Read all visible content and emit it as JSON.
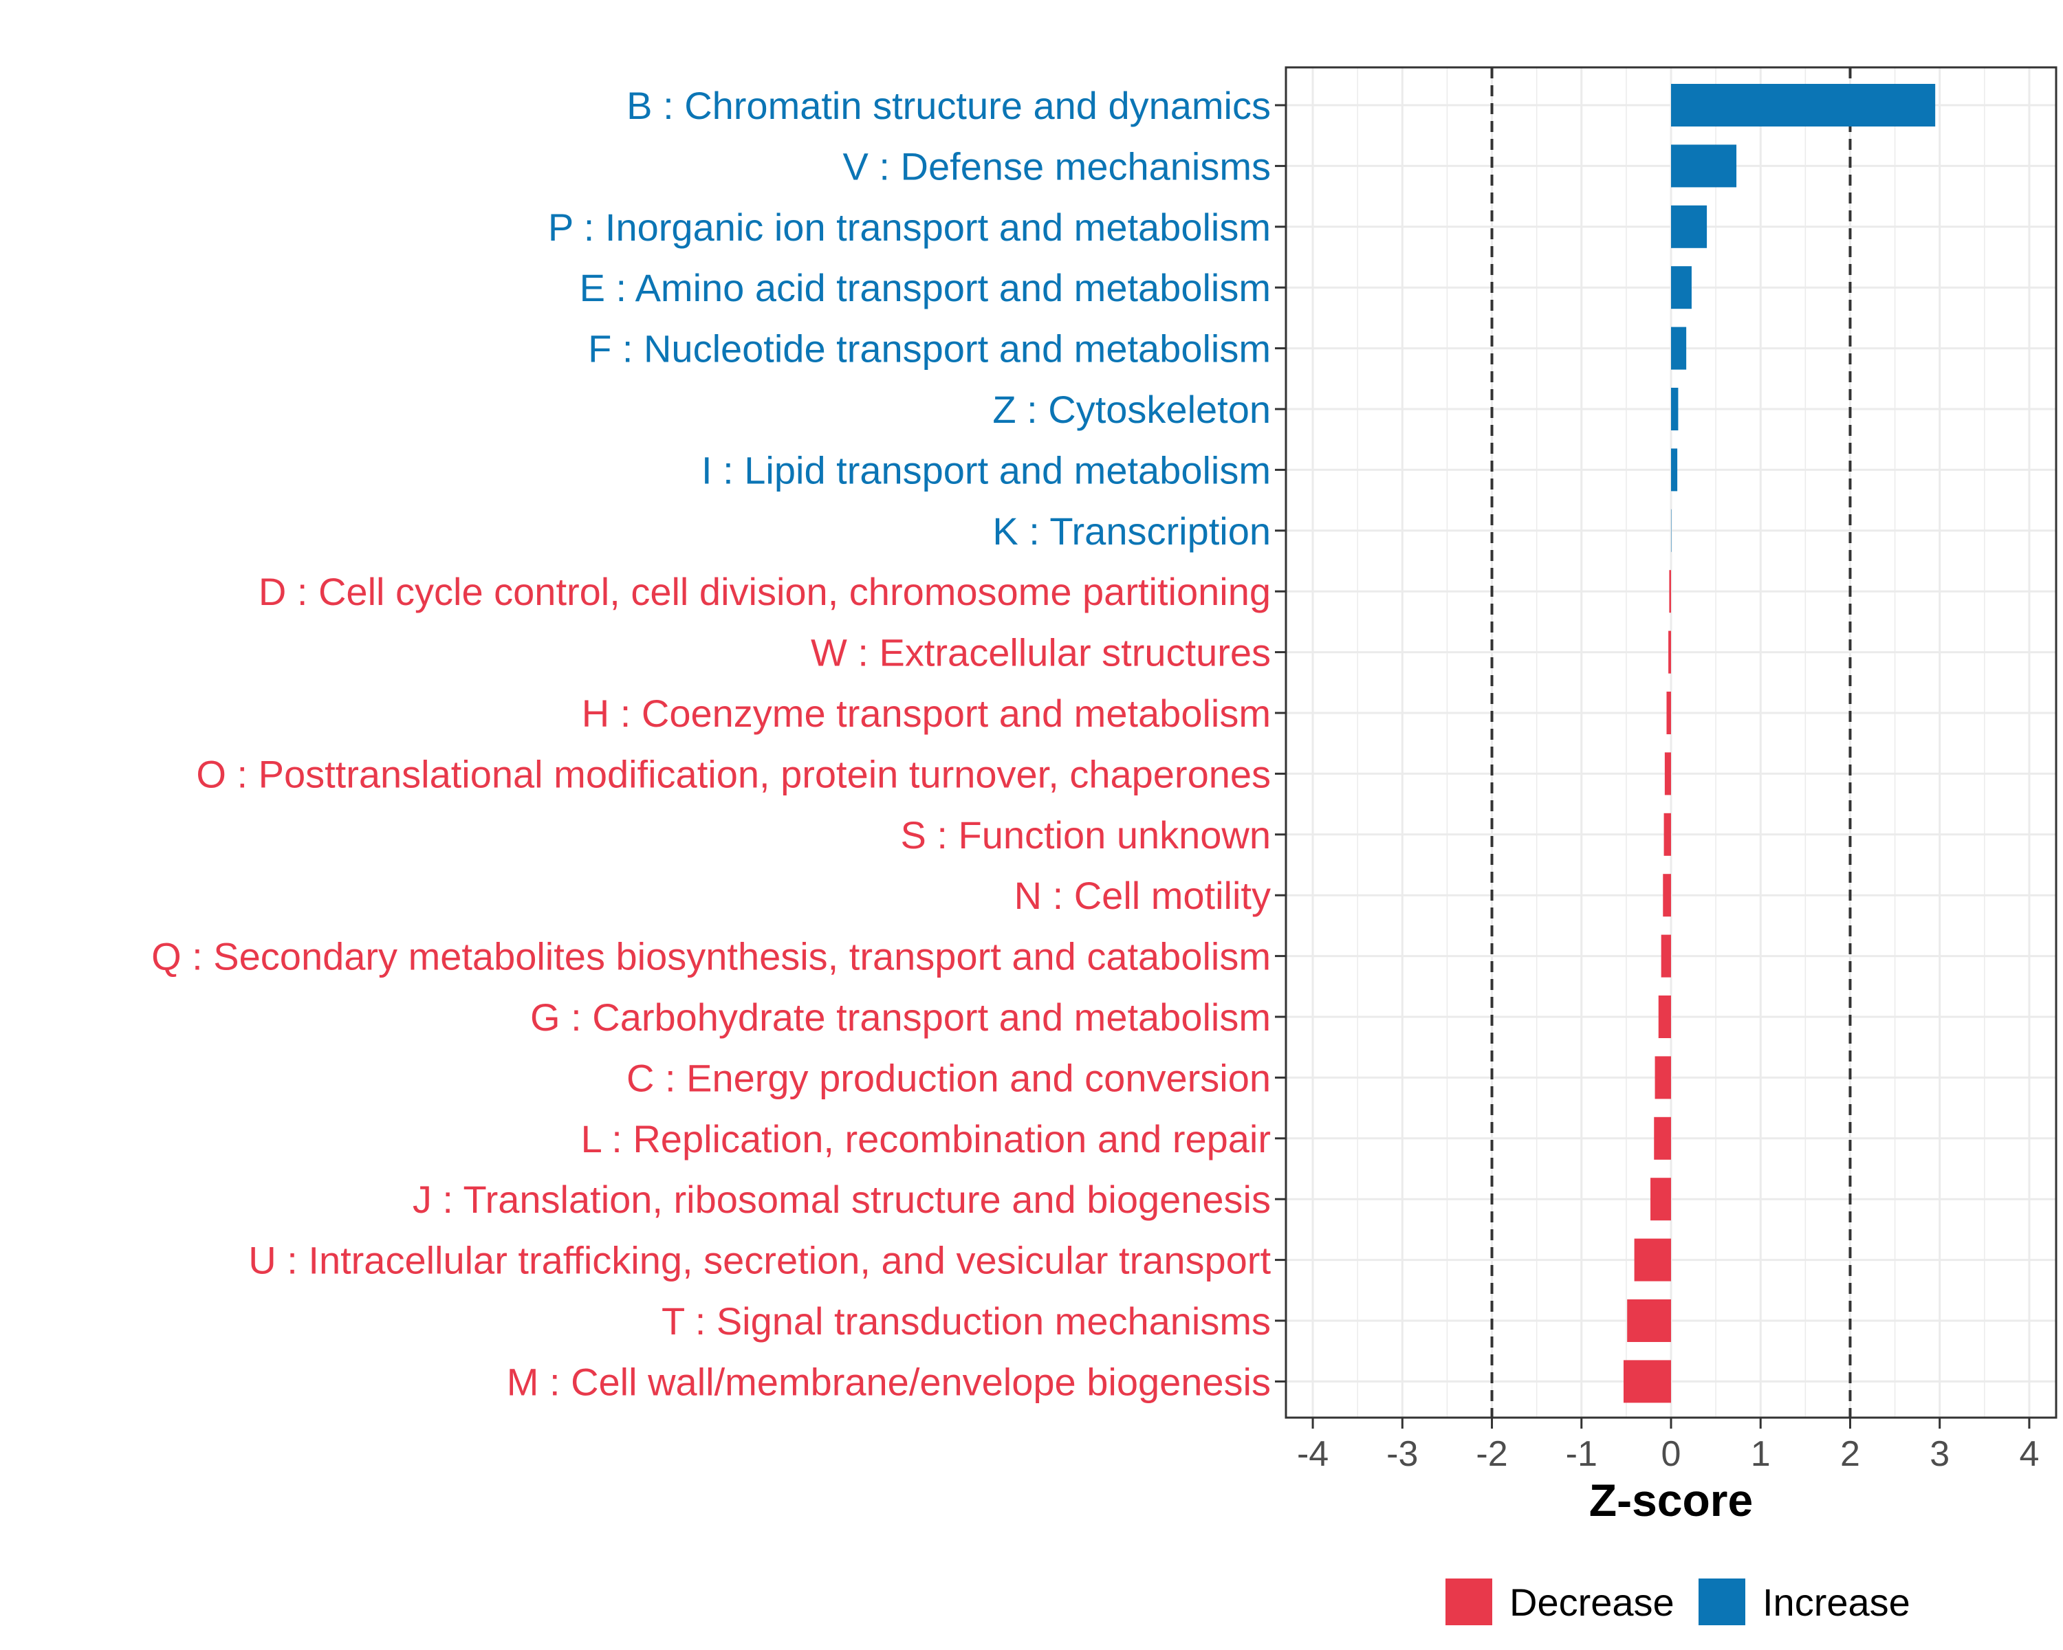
{
  "chart_data": {
    "type": "bar",
    "orientation": "horizontal",
    "xlabel": "Z-score",
    "xlim": [
      -4.3,
      4.3
    ],
    "xticks": [
      -4,
      -3,
      -2,
      -1,
      0,
      1,
      2,
      3,
      4
    ],
    "xtick_labels": [
      "-4",
      "-3",
      "-2",
      "-1",
      "0",
      "1",
      "2",
      "3",
      "4"
    ],
    "reference_lines": [
      -2,
      2
    ],
    "grid": true,
    "legend_position": "bottom",
    "colors": {
      "Decrease": "#e8394b",
      "Increase": "#0b75b5"
    },
    "legend": [
      {
        "name": "Decrease",
        "color": "#e8394b"
      },
      {
        "name": "Increase",
        "color": "#0b75b5"
      }
    ],
    "categories": [
      "B : Chromatin structure and dynamics",
      "V : Defense mechanisms",
      "P : Inorganic ion transport and metabolism",
      "E : Amino acid transport and metabolism",
      "F : Nucleotide transport and metabolism",
      "Z : Cytoskeleton",
      "I : Lipid transport and metabolism",
      "K : Transcription",
      "D : Cell cycle control, cell division, chromosome partitioning",
      "W : Extracellular structures",
      "H : Coenzyme transport and metabolism",
      "O : Posttranslational modification, protein turnover, chaperones",
      "S : Function unknown",
      "N : Cell motility",
      "Q : Secondary metabolites biosynthesis, transport and catabolism",
      "G : Carbohydrate transport and metabolism",
      "C : Energy production and conversion",
      "L : Replication, recombination and repair",
      "J : Translation, ribosomal structure and biogenesis",
      "U : Intracellular trafficking, secretion, and vesicular transport",
      "T : Signal transduction mechanisms",
      "M : Cell wall/membrane/envelope biogenesis"
    ],
    "values": [
      2.95,
      0.73,
      0.4,
      0.23,
      0.17,
      0.08,
      0.07,
      0.0,
      -0.02,
      -0.03,
      -0.05,
      -0.07,
      -0.08,
      -0.09,
      -0.11,
      -0.14,
      -0.18,
      -0.19,
      -0.23,
      -0.41,
      -0.49,
      -0.53
    ],
    "groups": [
      "Increase",
      "Increase",
      "Increase",
      "Increase",
      "Increase",
      "Increase",
      "Increase",
      "Increase",
      "Decrease",
      "Decrease",
      "Decrease",
      "Decrease",
      "Decrease",
      "Decrease",
      "Decrease",
      "Decrease",
      "Decrease",
      "Decrease",
      "Decrease",
      "Decrease",
      "Decrease",
      "Decrease"
    ]
  }
}
